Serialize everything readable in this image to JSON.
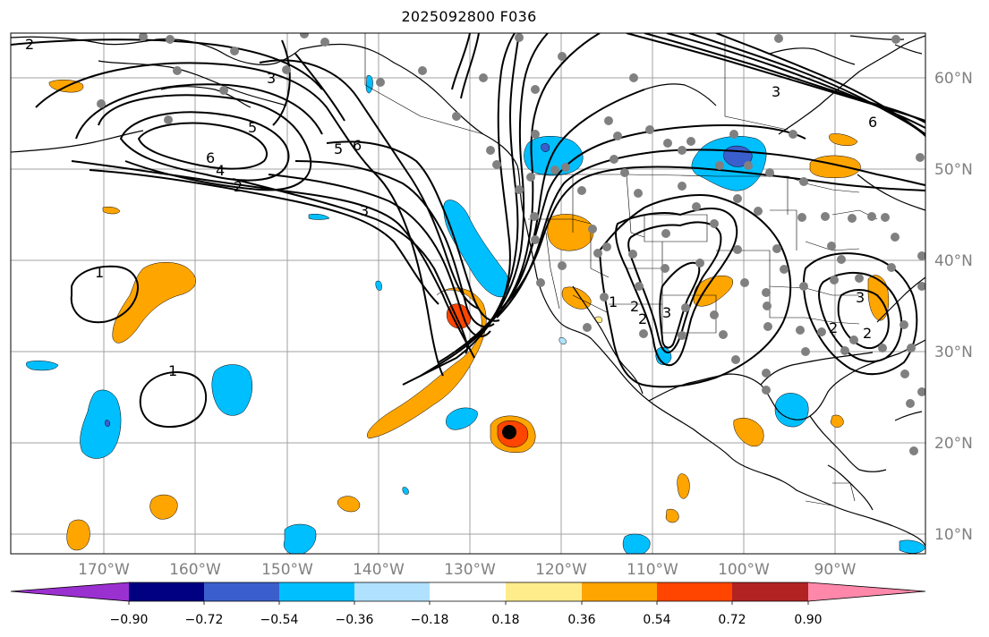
{
  "title": "2025092800 F036",
  "map": {
    "lat_labels": [
      "60°N",
      "50°N",
      "40°N",
      "30°N",
      "20°N",
      "10°N"
    ],
    "lon_labels": [
      "170°W",
      "160°W",
      "150°W",
      "140°W",
      "130°W",
      "120°W",
      "110°W",
      "100°W",
      "90°W"
    ],
    "contour_labels": [
      "2",
      "3",
      "5",
      "6",
      "4",
      "2",
      "3",
      "5",
      "6",
      "1",
      "1",
      "3",
      "6",
      "1",
      "2",
      "2",
      "3",
      "3",
      "2",
      "2"
    ],
    "grid": true,
    "gridline_color": "#a0a0a0",
    "coastline_color": "#000000"
  },
  "colorbar": {
    "colors": [
      "#9b30d0",
      "#000080",
      "#3a5fcd",
      "#00bfff",
      "#b0e2ff",
      "#ffffff",
      "#ffec8b",
      "#ffa500",
      "#ff4500",
      "#b22222",
      "#ff88aa"
    ],
    "ticks": [
      "−0.90",
      "−0.72",
      "−0.54",
      "−0.36",
      "−0.18",
      "0.18",
      "0.36",
      "0.54",
      "0.72",
      "0.90"
    ]
  },
  "colors": {
    "positive_fill": "#ffa500",
    "positive_strong": "#ff4500",
    "negative_fill": "#00bfff",
    "negative_strong": "#3a5fcd",
    "station_dot": "#808080",
    "center_dot": "#000000"
  }
}
